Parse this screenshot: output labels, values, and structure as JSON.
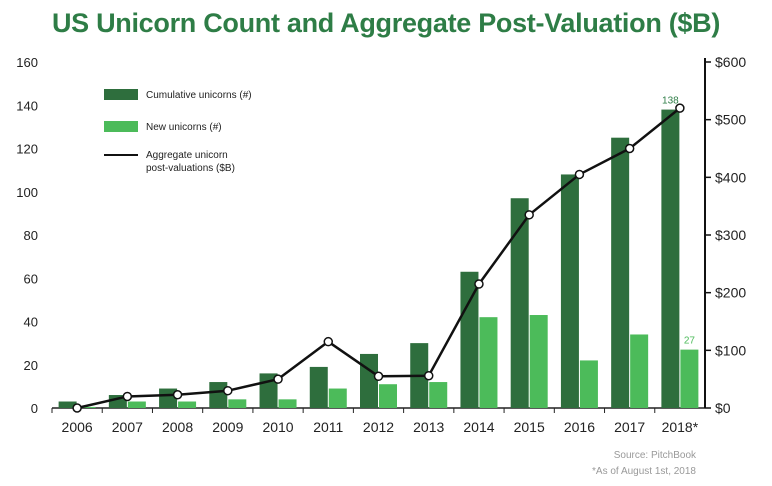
{
  "chart_data": {
    "type": "bar",
    "title": "US Unicorn Count and Aggregate Post-Valuation ($B)",
    "categories": [
      "2006",
      "2007",
      "2008",
      "2009",
      "2010",
      "2011",
      "2012",
      "2013",
      "2014",
      "2015",
      "2016",
      "2017",
      "2018*"
    ],
    "series": [
      {
        "name": "Cumulative unicorns (#)",
        "kind": "bar",
        "axis": "left",
        "color": "#2e6e3d",
        "values": [
          3,
          6,
          9,
          12,
          16,
          19,
          25,
          30,
          63,
          97,
          108,
          125,
          138
        ]
      },
      {
        "name": "New unicorns (#)",
        "kind": "bar",
        "axis": "left",
        "color": "#4cbb5a",
        "values": [
          0.5,
          3,
          3,
          4,
          4,
          9,
          11,
          12,
          42,
          43,
          22,
          34,
          27
        ]
      },
      {
        "name": "Aggregate unicorn post-valuations ($B)",
        "legend_lines": [
          "Aggregate unicorn",
          "post-valuations ($B)"
        ],
        "kind": "line",
        "axis": "right",
        "color": "#111111",
        "values": [
          0,
          20,
          23,
          30,
          50,
          115,
          55,
          56,
          215,
          335,
          405,
          450,
          520
        ]
      }
    ],
    "left_axis": {
      "min": 0,
      "max": 160,
      "ticks": [
        "0",
        "20",
        "40",
        "60",
        "80",
        "100",
        "120",
        "140",
        "160"
      ]
    },
    "right_axis": {
      "min": 0,
      "max": 600,
      "ticks": [
        "$0",
        "$100",
        "$200",
        "$300",
        "$400",
        "$500",
        "$600"
      ]
    },
    "data_labels": [
      {
        "series": 0,
        "index": 12,
        "text": "138",
        "color": "#2e7d46"
      },
      {
        "series": 1,
        "index": 12,
        "text": "27",
        "color": "#4cbb5a"
      }
    ],
    "legend_placement": "top-left",
    "source": "Source:  PitchBook",
    "footnote": "*As of August 1st, 2018"
  }
}
